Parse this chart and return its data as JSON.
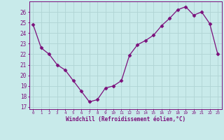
{
  "x": [
    0,
    1,
    2,
    3,
    4,
    5,
    6,
    7,
    8,
    9,
    10,
    11,
    12,
    13,
    14,
    15,
    16,
    17,
    18,
    19,
    20,
    21,
    22,
    23
  ],
  "y": [
    24.8,
    22.6,
    22.0,
    21.0,
    20.5,
    19.5,
    18.5,
    17.5,
    17.7,
    18.8,
    19.0,
    19.5,
    21.9,
    22.9,
    23.3,
    23.8,
    24.7,
    25.4,
    26.2,
    26.5,
    25.7,
    26.0,
    24.9,
    22.0
  ],
  "line_color": "#7b0f7b",
  "marker": "D",
  "marker_size": 2.5,
  "bg_color": "#c8eaea",
  "grid_color": "#b0d4d4",
  "xlabel": "Windchill (Refroidissement éolien,°C)",
  "ylabel_ticks": [
    17,
    18,
    19,
    20,
    21,
    22,
    23,
    24,
    25,
    26
  ],
  "xticks": [
    0,
    1,
    2,
    3,
    4,
    5,
    6,
    7,
    8,
    9,
    10,
    11,
    12,
    13,
    14,
    15,
    16,
    17,
    18,
    19,
    20,
    21,
    22,
    23
  ],
  "ylim": [
    16.8,
    27.0
  ],
  "xlim": [
    -0.5,
    23.5
  ]
}
